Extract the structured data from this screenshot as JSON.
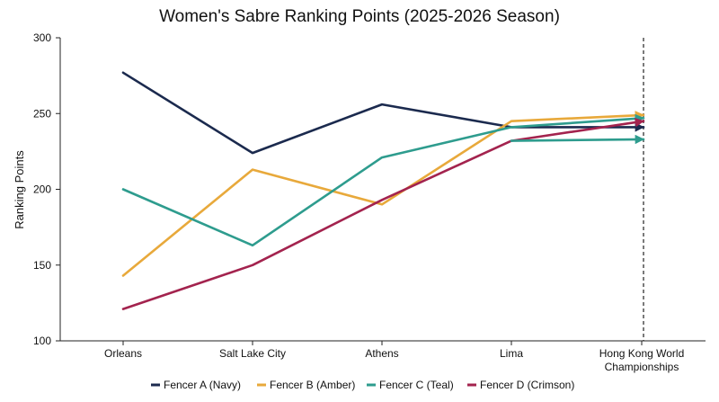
{
  "chart_data": {
    "type": "line",
    "title": "Women's Sabre Ranking Points (2025-2026 Season)",
    "xlabel": "",
    "ylabel": "Ranking Points",
    "categories": [
      "Orleans",
      "Salt Lake City",
      "Athens",
      "Lima",
      "Hong Kong World Championships"
    ],
    "category_lines": [
      [
        "Orleans"
      ],
      [
        "Salt Lake City"
      ],
      [
        "Athens"
      ],
      [
        "Lima"
      ],
      [
        "Hong Kong World",
        "Championships"
      ]
    ],
    "ylim": [
      100,
      300
    ],
    "yticks": [
      100,
      150,
      200,
      250,
      300
    ],
    "grid": false,
    "legend_position": "bottom",
    "final_event_marker": "dashed vertical line at the last event",
    "series": [
      {
        "name": "Fencer A (Navy)",
        "color": "#1b2a4e",
        "values": [
          277,
          224,
          256,
          241,
          241
        ]
      },
      {
        "name": "Fencer B (Amber)",
        "color": "#e8a93b",
        "values": [
          143,
          213,
          190,
          245,
          249
        ]
      },
      {
        "name": "Fencer C (Teal)",
        "color": "#2e9c8e",
        "values": [
          200,
          163,
          221,
          241,
          247
        ]
      },
      {
        "name": "Fencer D (Crimson)",
        "color": "#a3234e",
        "values": [
          121,
          150,
          193,
          232,
          245
        ]
      },
      {
        "name": "",
        "color": "#2e9c8e",
        "values": [
          null,
          null,
          null,
          232,
          233
        ]
      }
    ]
  }
}
